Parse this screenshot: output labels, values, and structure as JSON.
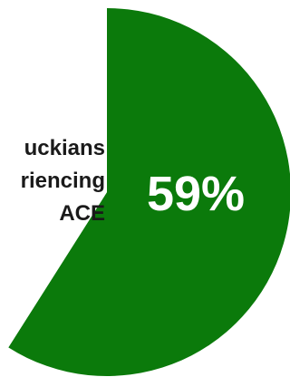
{
  "chart_data": {
    "type": "pie",
    "slices": [
      {
        "label": "",
        "value": 59,
        "color": "#0b7a0b"
      },
      {
        "label": "",
        "value": 41,
        "color": "#ffffff"
      }
    ],
    "data_labels": [
      "59%"
    ],
    "label_lines": [
      "uckians",
      "riencing",
      "ACE"
    ]
  }
}
